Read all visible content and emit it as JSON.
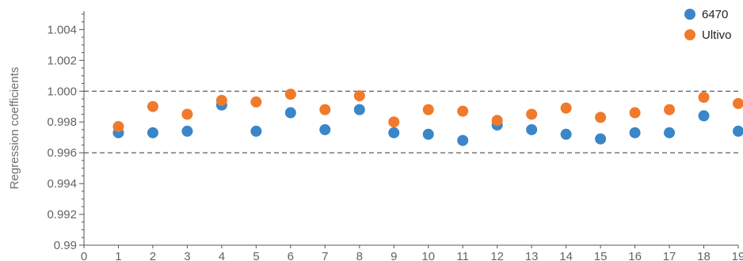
{
  "chart_data": {
    "type": "scatter",
    "title": "",
    "xlabel": "",
    "ylabel": "Regression coefficients",
    "xlim": [
      0,
      19
    ],
    "ylim": [
      0.99,
      1.0052
    ],
    "x_ticks": [
      0,
      1,
      2,
      3,
      4,
      5,
      6,
      7,
      8,
      9,
      10,
      11,
      12,
      13,
      14,
      15,
      16,
      17,
      18,
      19
    ],
    "y_ticks": [
      0.99,
      0.992,
      0.994,
      0.996,
      0.998,
      1.0,
      1.002,
      1.004
    ],
    "y_tick_labels": [
      "0.99",
      "0.992",
      "0.994",
      "0.996",
      "0.998",
      "1.000",
      "1.002",
      "1.004"
    ],
    "reference_lines": [
      1.0,
      0.996
    ],
    "legend_position": "top-right",
    "grid": false,
    "x": [
      1,
      2,
      3,
      4,
      5,
      6,
      7,
      8,
      9,
      10,
      11,
      12,
      13,
      14,
      15,
      16,
      17,
      18,
      19
    ],
    "series": [
      {
        "name": "6470",
        "color": "#3a86c8",
        "values": [
          0.9973,
          0.9973,
          0.9974,
          0.9991,
          0.9974,
          0.9986,
          0.9975,
          0.9988,
          0.9973,
          0.9972,
          0.9968,
          0.9978,
          0.9975,
          0.9972,
          0.9969,
          0.9973,
          0.9973,
          0.9984,
          0.9974
        ]
      },
      {
        "name": "Ultivo",
        "color": "#f07a2b",
        "values": [
          0.9977,
          0.999,
          0.9985,
          0.9994,
          0.9993,
          0.9998,
          0.9988,
          0.9997,
          0.998,
          0.9988,
          0.9987,
          0.9981,
          0.9985,
          0.9989,
          0.9983,
          0.9986,
          0.9988,
          0.9996,
          0.9992
        ]
      }
    ]
  }
}
